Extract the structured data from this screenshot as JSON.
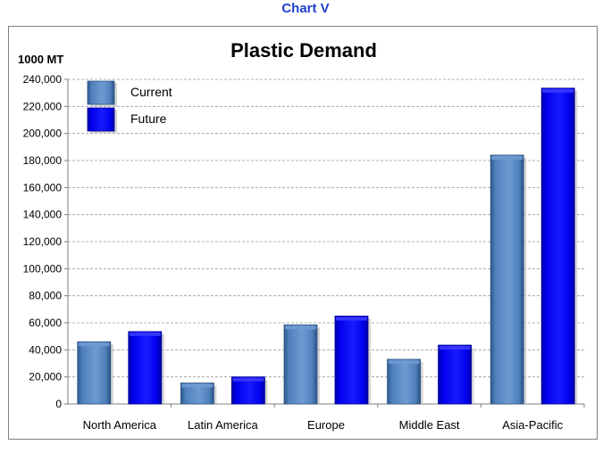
{
  "caption": "Chart V",
  "chart_data": {
    "type": "bar",
    "title": "Plastic Demand",
    "ylabel": "1000 MT",
    "xlabel": "",
    "categories": [
      "North America",
      "Latin America",
      "Europe",
      "Middle East",
      "Asia-Pacific"
    ],
    "series": [
      {
        "name": "Current",
        "values": [
          46000,
          15500,
          58500,
          33000,
          184000
        ],
        "color": "#4f81bd"
      },
      {
        "name": "Future",
        "values": [
          53500,
          20000,
          65000,
          43500,
          233500
        ],
        "color": "#0000ee"
      }
    ],
    "ylim": [
      0,
      240000
    ],
    "yticks": [
      "0",
      "20,000",
      "40,000",
      "60,000",
      "80,000",
      "100,000",
      "120,000",
      "140,000",
      "160,000",
      "180,000",
      "200,000",
      "220,000",
      "240,000"
    ],
    "grid": true,
    "legend_position": "top-left"
  }
}
